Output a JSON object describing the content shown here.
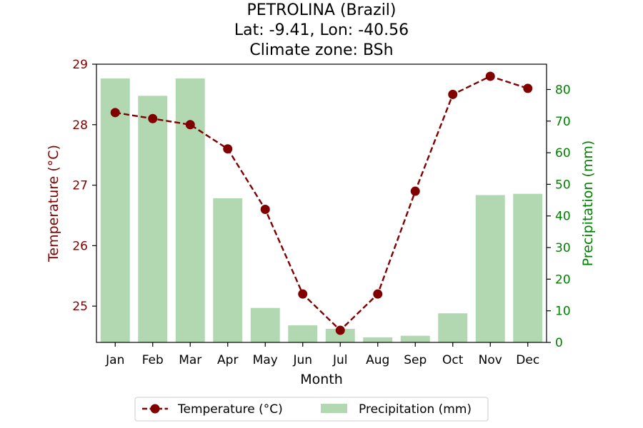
{
  "chart_data": {
    "type": "bar+line",
    "title_lines": [
      "PETROLINA (Brazil)",
      "Lat: -9.41, Lon: -40.56",
      "Climate zone: BSh"
    ],
    "xlabel": "Month",
    "ylabel_left": "Temperature (°C)",
    "ylabel_right": "Precipitation (mm)",
    "categories": [
      "Jan",
      "Feb",
      "Mar",
      "Apr",
      "May",
      "Jun",
      "Jul",
      "Aug",
      "Sep",
      "Oct",
      "Nov",
      "Dec"
    ],
    "y_left": {
      "min": 24.4,
      "max": 29.0,
      "ticks": [
        25,
        26,
        27,
        28,
        29
      ]
    },
    "y_right": {
      "min": 0,
      "max": 88,
      "ticks": [
        0,
        10,
        20,
        30,
        40,
        50,
        60,
        70,
        80
      ]
    },
    "series": [
      {
        "name": "Temperature (°C)",
        "type": "line",
        "axis": "left",
        "color": "#800000",
        "values": [
          28.2,
          28.1,
          28.0,
          27.6,
          26.6,
          25.2,
          24.6,
          25.2,
          26.9,
          28.5,
          28.8,
          28.6
        ]
      },
      {
        "name": "Precipitation (mm)",
        "type": "bar",
        "axis": "right",
        "color": "#b2d8b2",
        "values": [
          83.5,
          78.0,
          83.5,
          45.6,
          10.9,
          5.4,
          4.3,
          1.6,
          2.1,
          9.2,
          46.6,
          47.0
        ]
      }
    ],
    "legend_position": "bottom-center",
    "grid": false,
    "colors": {
      "left_axis": "#800000",
      "right_axis": "#008000",
      "axis_line": "#000000"
    }
  }
}
